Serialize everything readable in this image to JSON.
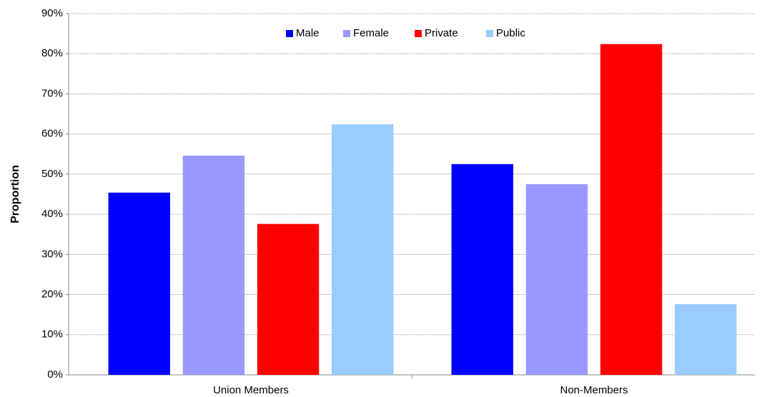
{
  "chart_data": {
    "type": "bar",
    "y_label": "Proportion",
    "categories": [
      "Union Members",
      "Non-Members"
    ],
    "series": [
      {
        "name": "Male",
        "color": "#0000ff",
        "values": [
          45.4,
          52.5
        ]
      },
      {
        "name": "Female",
        "color": "#9999ff",
        "values": [
          54.6,
          47.5
        ]
      },
      {
        "name": "Private",
        "color": "#ff0000",
        "values": [
          37.6,
          82.4
        ]
      },
      {
        "name": "Public",
        "color": "#99ccff",
        "values": [
          62.4,
          17.6
        ]
      }
    ],
    "ylim": [
      0,
      90
    ],
    "yticks": [
      {
        "value": 0,
        "label": "0%"
      },
      {
        "value": 10,
        "label": "10%"
      },
      {
        "value": 20,
        "label": "20%"
      },
      {
        "value": 30,
        "label": "30%"
      },
      {
        "value": 40,
        "label": "40%"
      },
      {
        "value": 50,
        "label": "50%"
      },
      {
        "value": 60,
        "label": "60%"
      },
      {
        "value": 70,
        "label": "70%"
      },
      {
        "value": 80,
        "label": "80%"
      },
      {
        "value": 90,
        "label": "90%"
      }
    ],
    "grid": true,
    "legend": "top"
  }
}
